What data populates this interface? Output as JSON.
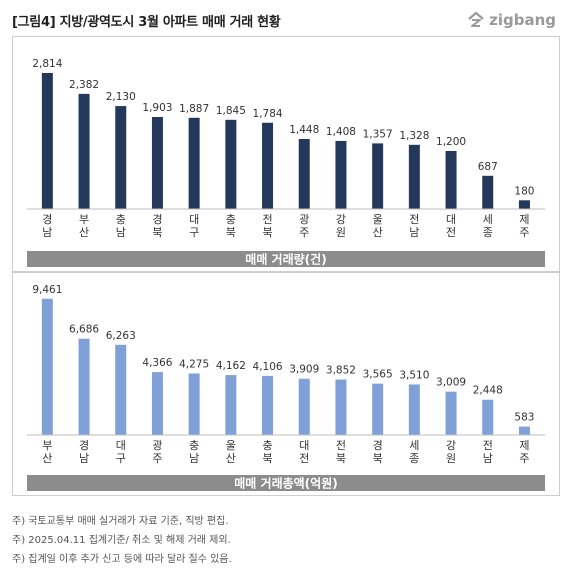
{
  "header": {
    "title": "[그림4] 지방/광역도시 3월 아파트 매매 거래 현황",
    "logo_text": "zigbang"
  },
  "colors": {
    "series1_bar": "#23385a",
    "series2_bar": "#7fa1d8",
    "caption_bg": "#8c8c8c"
  },
  "chart_data": [
    {
      "type": "bar",
      "caption": "매매 거래량(건)",
      "categories": [
        "경남",
        "부산",
        "충남",
        "경북",
        "대구",
        "충북",
        "전북",
        "광주",
        "강원",
        "울산",
        "전남",
        "대전",
        "세종",
        "제주"
      ],
      "values": [
        2814,
        2382,
        2130,
        1903,
        1887,
        1845,
        1784,
        1448,
        1408,
        1357,
        1328,
        1200,
        687,
        180
      ],
      "value_labels": [
        "2,814",
        "2,382",
        "2,130",
        "1,903",
        "1,887",
        "1,845",
        "1,784",
        "1,448",
        "1,408",
        "1,357",
        "1,328",
        "1,200",
        "687",
        "180"
      ],
      "ylim": [
        0,
        3000
      ]
    },
    {
      "type": "bar",
      "caption": "매매 거래총액(억원)",
      "categories": [
        "부산",
        "경남",
        "대구",
        "광주",
        "충남",
        "울산",
        "충북",
        "대전",
        "전북",
        "경북",
        "세종",
        "강원",
        "전남",
        "제주"
      ],
      "values": [
        9461,
        6686,
        6263,
        4366,
        4275,
        4162,
        4106,
        3909,
        3852,
        3565,
        3510,
        3009,
        2448,
        583
      ],
      "value_labels": [
        "9,461",
        "6,686",
        "6,263",
        "4,366",
        "4,275",
        "4,162",
        "4,106",
        "3,909",
        "3,852",
        "3,565",
        "3,510",
        "3,009",
        "2,448",
        "583"
      ],
      "ylim": [
        0,
        10000
      ]
    }
  ],
  "notes": [
    "주) 국토교통부 매매 실거래가 자료 기준, 직방 편집.",
    "주) 2025.04.11 집계기준/ 취소 및 해제 거래 제외.",
    "주) 집계일 이후 추가 신고 등에 따라 달라 질수 있음."
  ]
}
